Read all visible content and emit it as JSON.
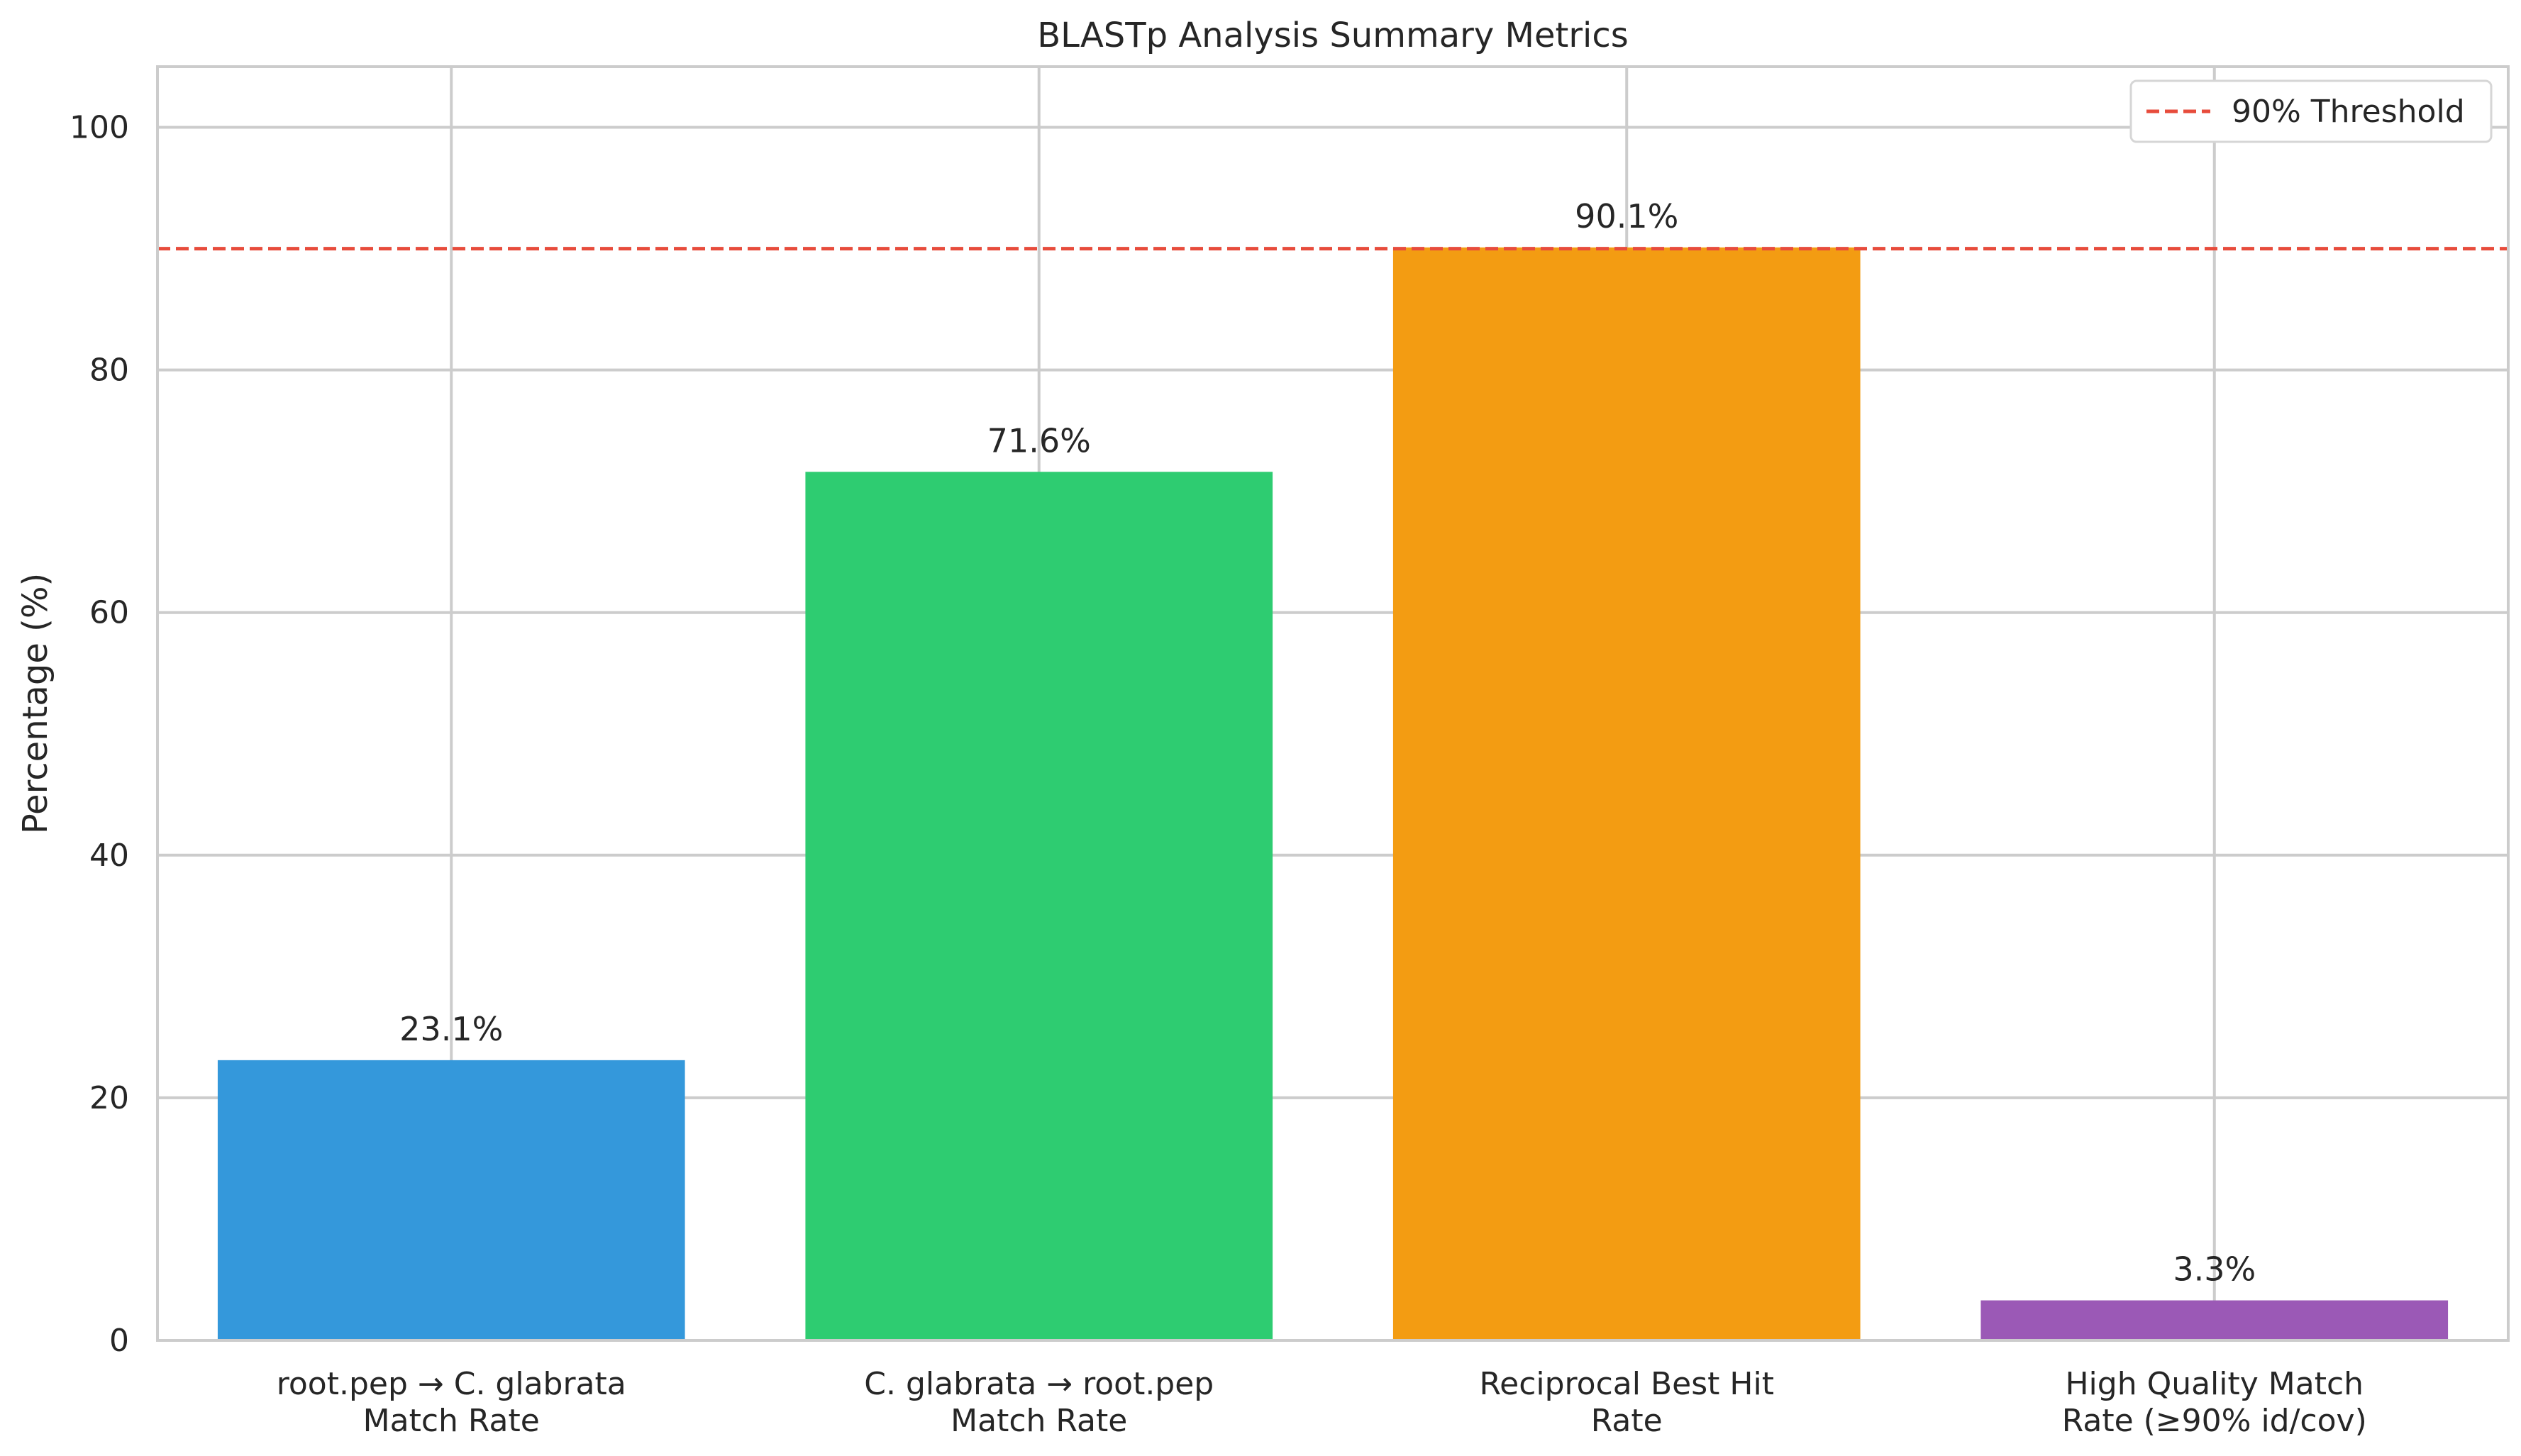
{
  "chart_data": {
    "type": "bar",
    "title": "BLASTp Analysis Summary Metrics",
    "xlabel": "",
    "ylabel": "Percentage (%)",
    "ylim": [
      0,
      105
    ],
    "yticks": [
      0,
      20,
      40,
      60,
      80,
      100
    ],
    "grid": true,
    "categories": [
      [
        "root.pep → C. glabrata",
        "Match Rate"
      ],
      [
        "C. glabrata → root.pep",
        "Match Rate"
      ],
      [
        "Reciprocal Best Hit",
        "Rate"
      ],
      [
        "High Quality Match",
        "Rate (≥90% id/cov)"
      ]
    ],
    "values": [
      23.1,
      71.6,
      90.1,
      3.3
    ],
    "value_labels": [
      "23.1%",
      "71.6%",
      "90.1%",
      "3.3%"
    ],
    "colors": [
      "#3498db",
      "#2ecc71",
      "#f39c12",
      "#9b59b6"
    ],
    "threshold": {
      "value": 90,
      "label": "90% Threshold",
      "color": "#e74c3c",
      "style": "dashed"
    },
    "legend": {
      "position": "top-right",
      "entries": [
        "90% Threshold"
      ]
    }
  }
}
